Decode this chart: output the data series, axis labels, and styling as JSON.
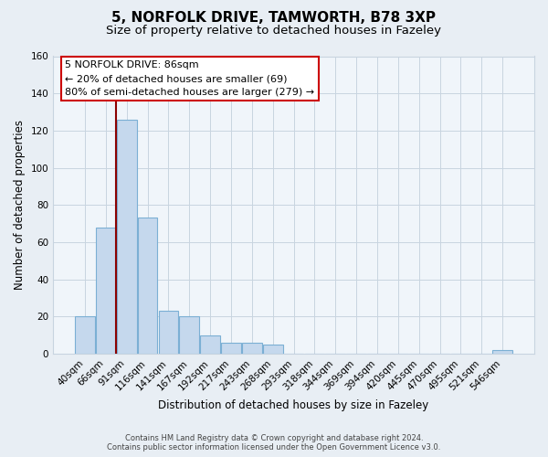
{
  "title": "5, NORFOLK DRIVE, TAMWORTH, B78 3XP",
  "subtitle": "Size of property relative to detached houses in Fazeley",
  "xlabel": "Distribution of detached houses by size in Fazeley",
  "ylabel": "Number of detached properties",
  "bar_labels": [
    "40sqm",
    "66sqm",
    "91sqm",
    "116sqm",
    "141sqm",
    "167sqm",
    "192sqm",
    "217sqm",
    "243sqm",
    "268sqm",
    "293sqm",
    "318sqm",
    "344sqm",
    "369sqm",
    "394sqm",
    "420sqm",
    "445sqm",
    "470sqm",
    "495sqm",
    "521sqm",
    "546sqm"
  ],
  "bar_heights": [
    20,
    68,
    126,
    73,
    23,
    20,
    10,
    6,
    6,
    5,
    0,
    0,
    0,
    0,
    0,
    0,
    0,
    0,
    0,
    0,
    2
  ],
  "bar_color": "#c5d8ed",
  "bar_edge_color": "#7bafd4",
  "marker_line_color": "#8b0000",
  "ylim": [
    0,
    160
  ],
  "yticks": [
    0,
    20,
    40,
    60,
    80,
    100,
    120,
    140,
    160
  ],
  "annotation_title": "5 NORFOLK DRIVE: 86sqm",
  "annotation_line1": "← 20% of detached houses are smaller (69)",
  "annotation_line2": "80% of semi-detached houses are larger (279) →",
  "annotation_box_color": "#ffffff",
  "annotation_box_edge_color": "#cc0000",
  "footer_line1": "Contains HM Land Registry data © Crown copyright and database right 2024.",
  "footer_line2": "Contains public sector information licensed under the Open Government Licence v3.0.",
  "background_color": "#e8eef4",
  "plot_bg_color": "#f0f5fa",
  "grid_color": "#c8d4e0",
  "title_fontsize": 11,
  "subtitle_fontsize": 9.5,
  "tick_fontsize": 7.5,
  "ylabel_fontsize": 8.5,
  "xlabel_fontsize": 8.5,
  "footer_fontsize": 6,
  "annotation_fontsize": 8
}
